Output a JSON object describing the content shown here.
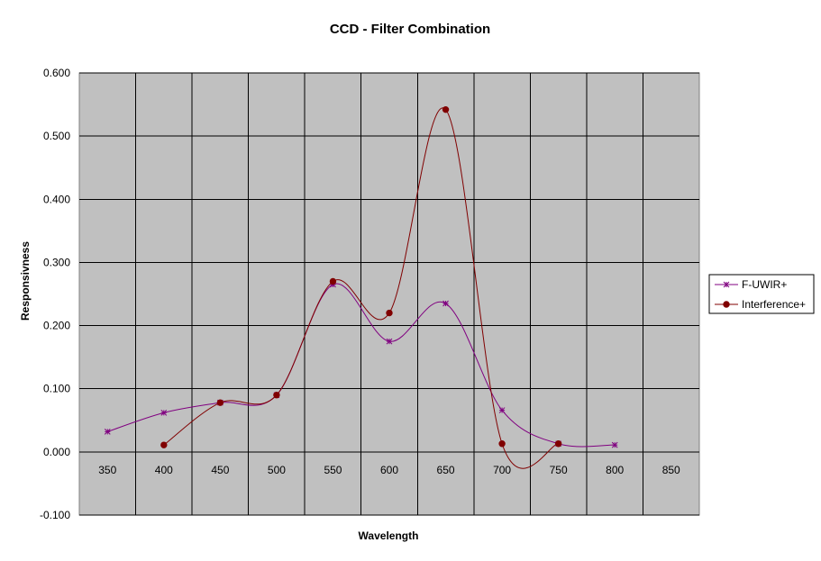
{
  "chart_data": {
    "type": "line",
    "title": "CCD - Filter Combination",
    "xlabel": "Wavelength",
    "ylabel": "Responsivness",
    "ylim": [
      -0.1,
      0.6
    ],
    "y_ticks": [
      "-0.100",
      "0.000",
      "0.100",
      "0.200",
      "0.300",
      "0.400",
      "0.500",
      "0.600"
    ],
    "categories": [
      "350",
      "400",
      "450",
      "500",
      "550",
      "600",
      "650",
      "700",
      "750",
      "800",
      "850"
    ],
    "grid": true,
    "legend_position": "right",
    "plot_background": "#c0c0c0",
    "series": [
      {
        "name": "F-UWIR+",
        "color": "#800080",
        "marker": "asterisk",
        "values": [
          0.032,
          0.062,
          0.078,
          0.09,
          0.265,
          0.175,
          0.235,
          0.066,
          0.013,
          0.011,
          null
        ]
      },
      {
        "name": "Interference+",
        "color": "#800000",
        "marker": "circle",
        "values": [
          null,
          0.011,
          0.078,
          0.09,
          0.27,
          0.22,
          0.542,
          0.013,
          0.013,
          null,
          null
        ]
      }
    ]
  }
}
